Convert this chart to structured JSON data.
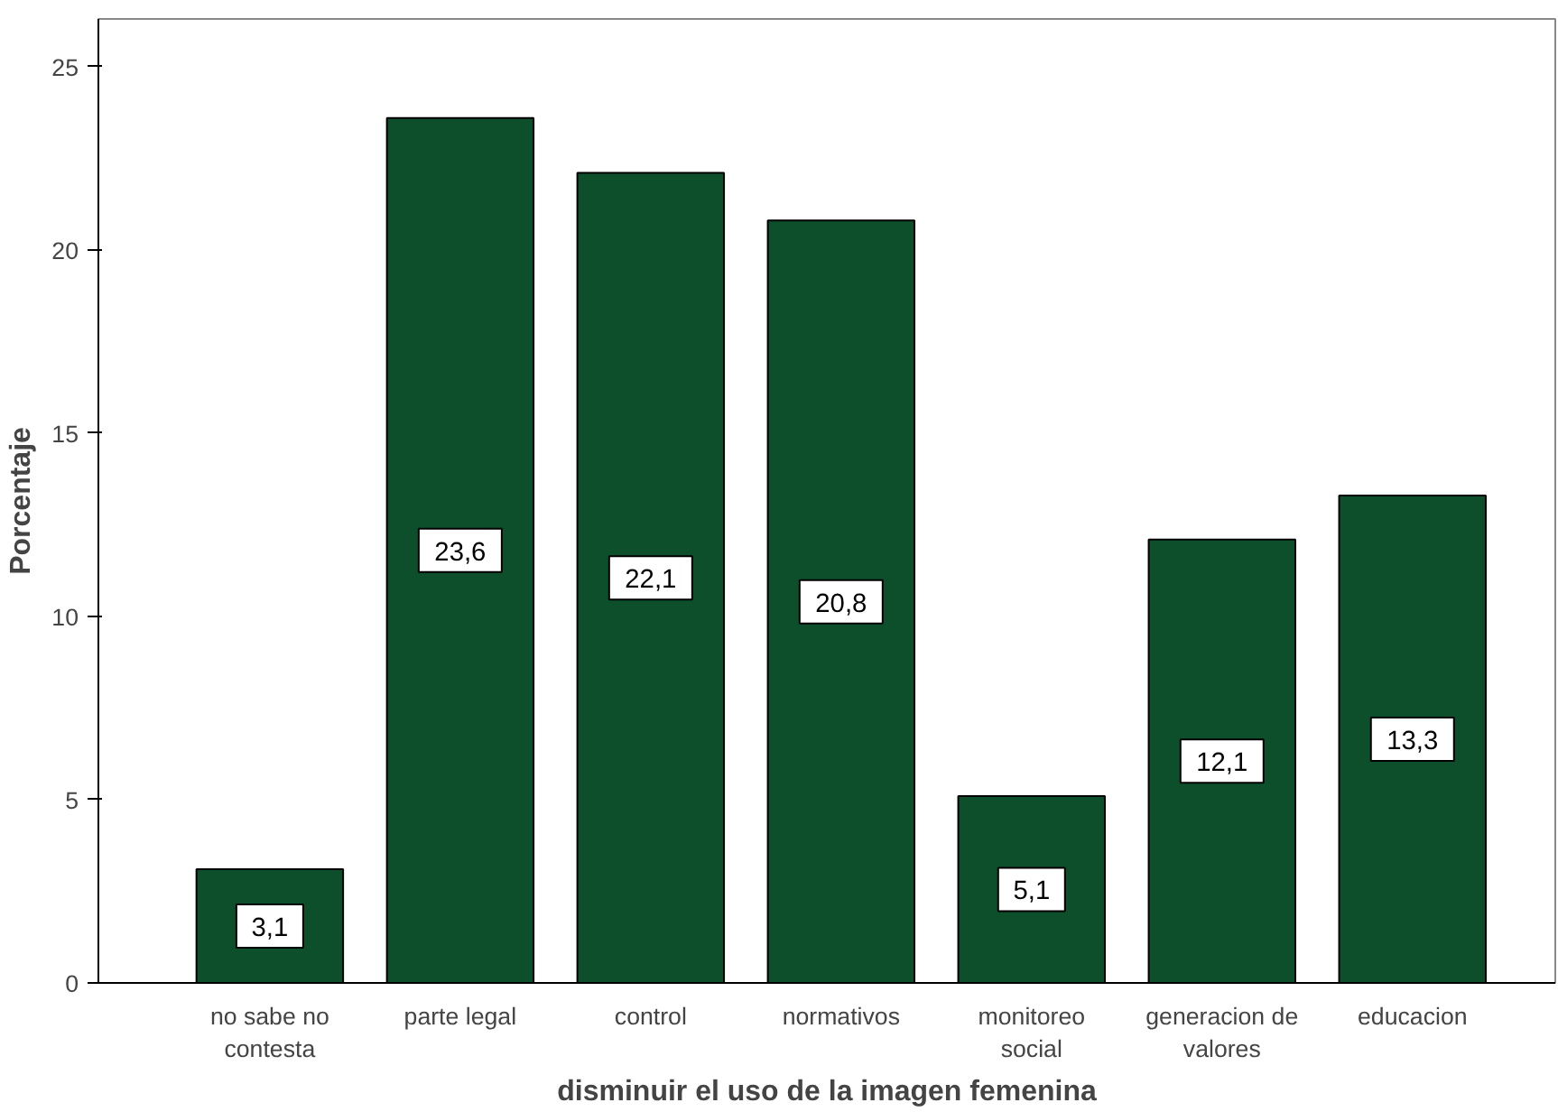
{
  "chart_data": {
    "type": "bar",
    "xlabel": "disminuir el uso de la imagen femenina",
    "ylabel": "Porcentaje",
    "categories": [
      "no sabe no contesta",
      "parte legal",
      "control",
      "normativos",
      "monitoreo social",
      "generacion de valores",
      "educacion"
    ],
    "values": [
      3.1,
      23.6,
      22.1,
      20.8,
      5.1,
      12.1,
      13.3
    ],
    "value_labels": [
      "3,1",
      "23,6",
      "22,1",
      "20,8",
      "5,1",
      "12,1",
      "13,3"
    ],
    "color": "#0d4f2b",
    "ylim": [
      0,
      26.3
    ],
    "yticks": [
      0,
      5,
      10,
      15,
      20,
      25
    ],
    "grid": false
  }
}
